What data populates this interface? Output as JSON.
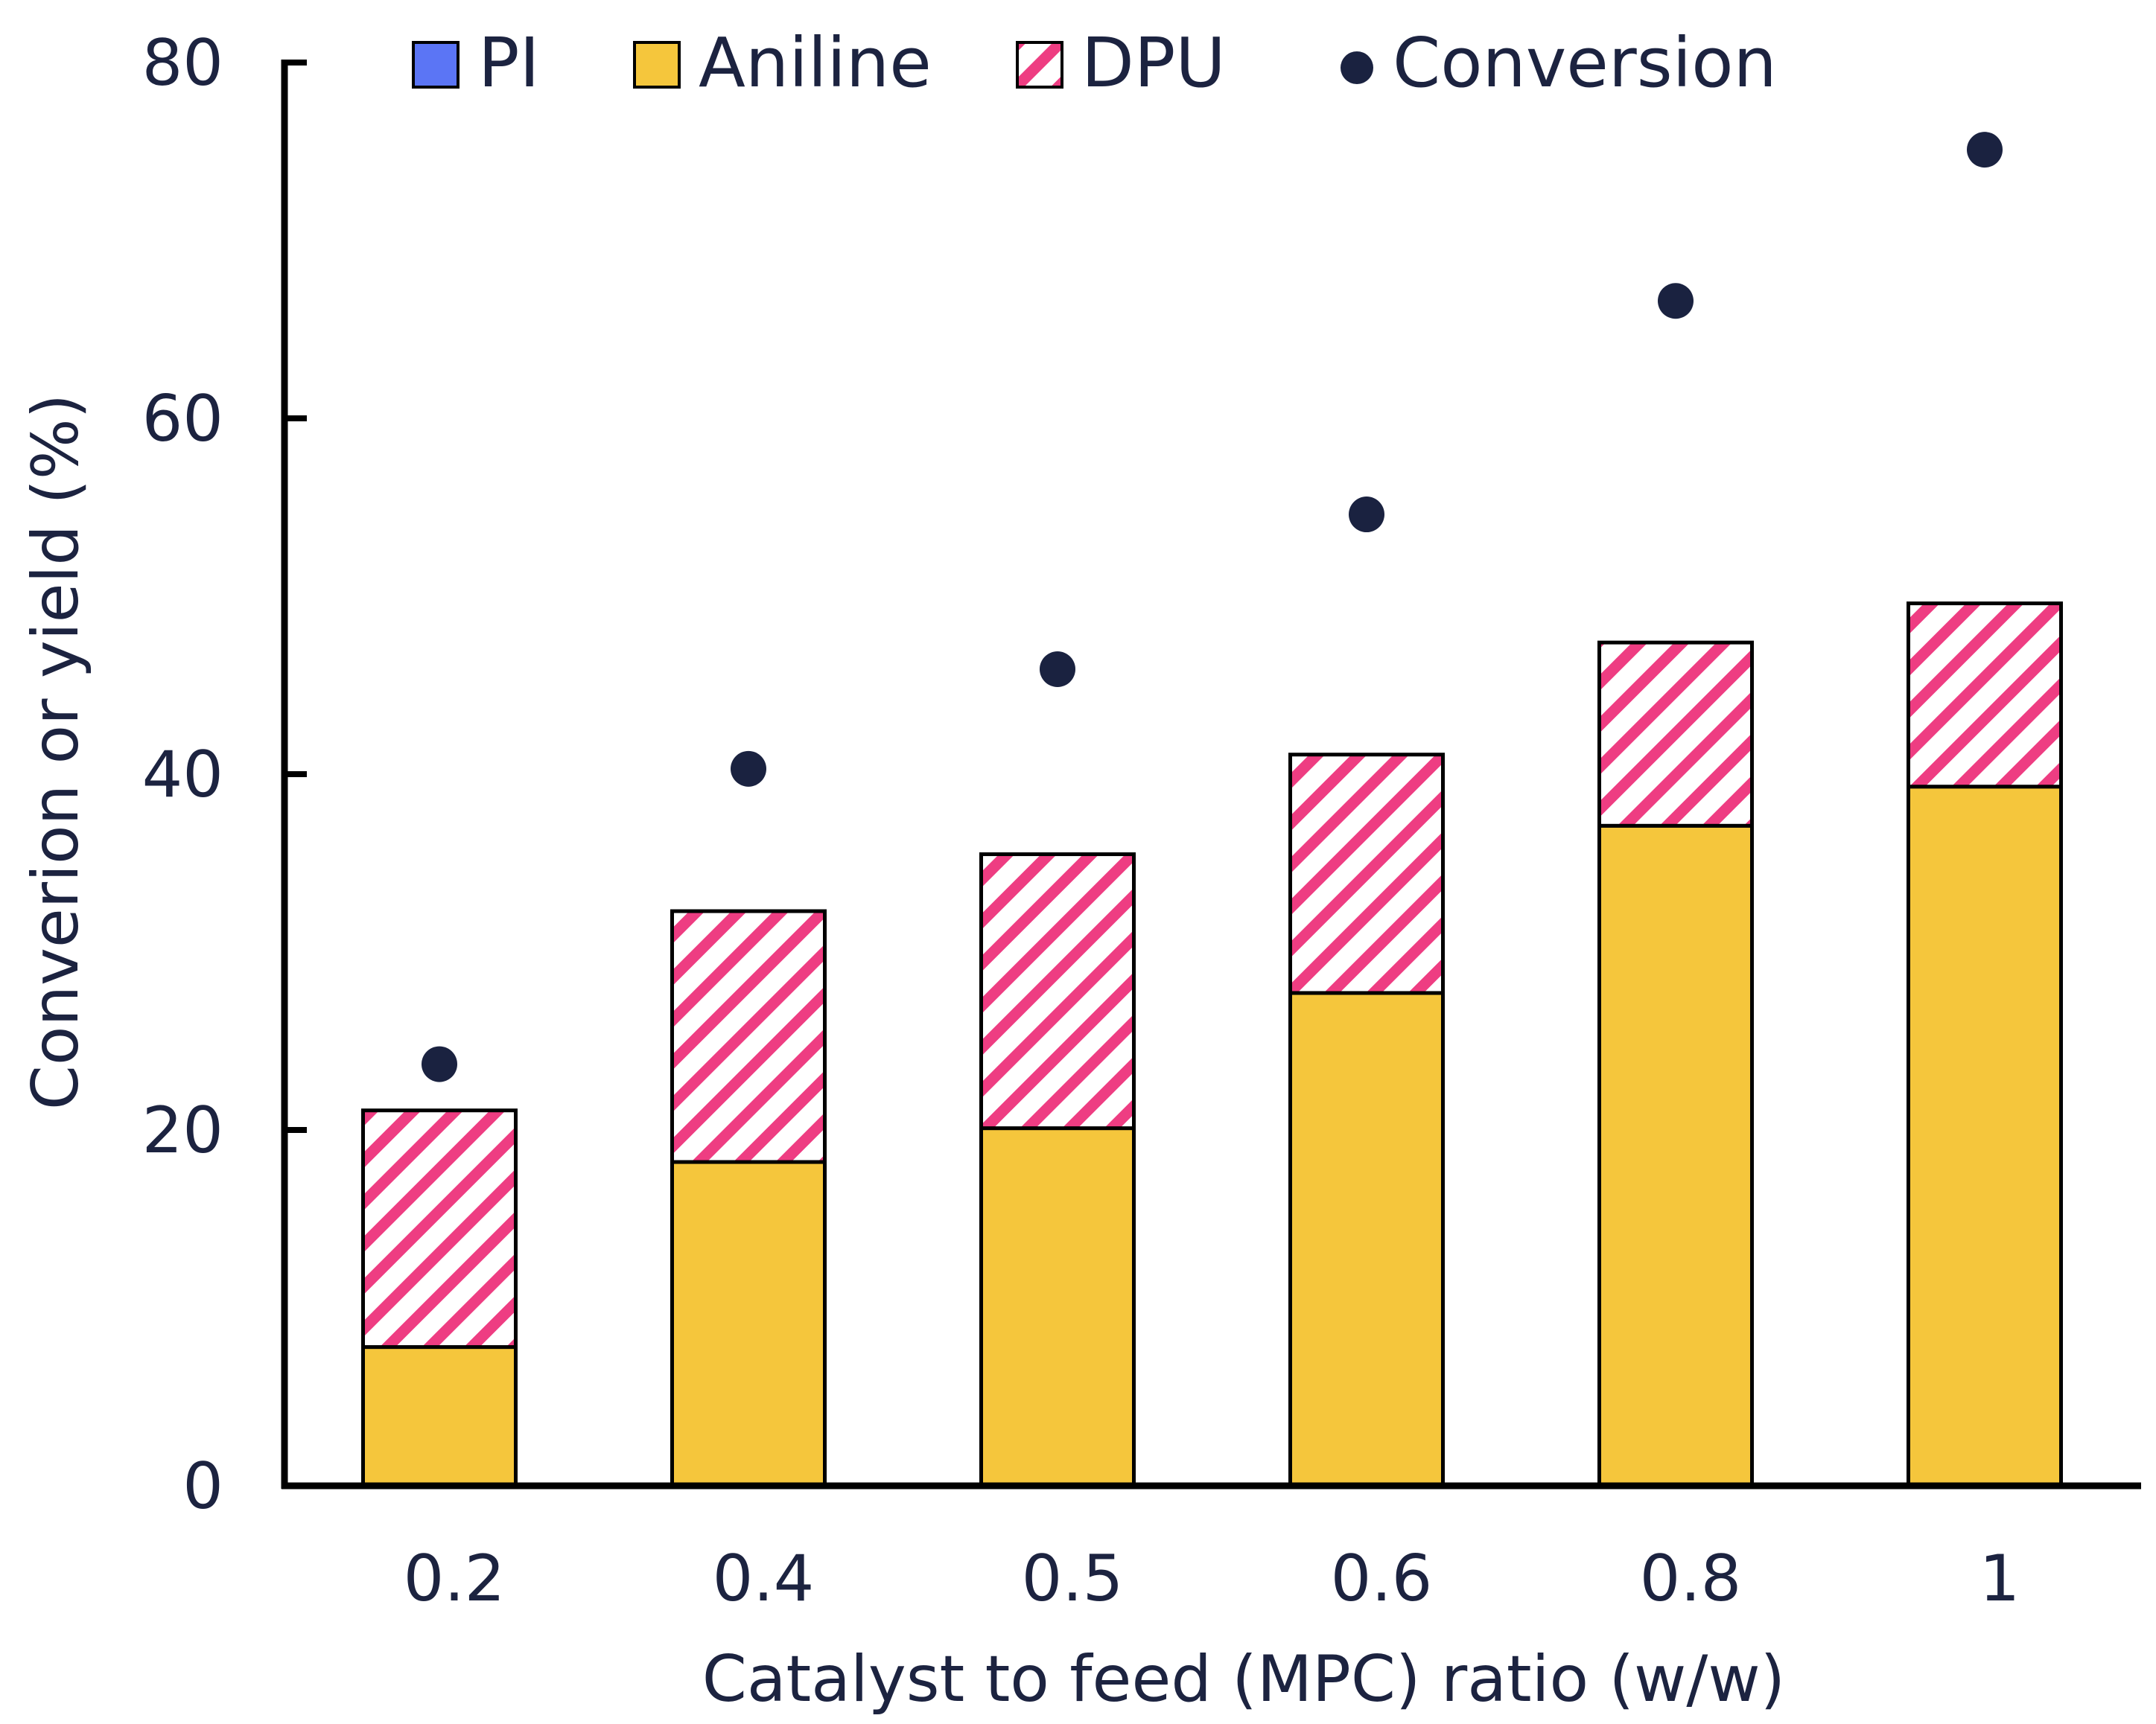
{
  "chart_data": {
    "type": "bar",
    "stacked": true,
    "title": "",
    "xlabel": "Catalyst to feed (MPC) ratio (w/w)",
    "ylabel": "Converion or yield (%)",
    "ylim": [
      0,
      80
    ],
    "yticks": [
      0,
      20,
      40,
      60,
      80
    ],
    "categories": [
      "0.2",
      "0.4",
      "0.5",
      "0.6",
      "0.8",
      "1"
    ],
    "series": [
      {
        "name": "PI",
        "kind": "bar",
        "values": [
          0,
          0,
          0,
          0,
          0,
          0
        ]
      },
      {
        "name": "Aniline",
        "kind": "bar",
        "values": [
          7.8,
          18.2,
          20.1,
          27.7,
          37.1,
          39.3
        ]
      },
      {
        "name": "DPU",
        "kind": "bar",
        "values": [
          13.3,
          14.1,
          15.4,
          13.4,
          10.3,
          10.3
        ]
      },
      {
        "name": "Conversion",
        "kind": "scatter",
        "values": [
          23.7,
          40.3,
          45.9,
          54.6,
          66.6,
          75.1
        ]
      }
    ],
    "legend": {
      "placement": "top",
      "entries": [
        "PI",
        "Aniline",
        "DPU",
        "Conversion"
      ]
    },
    "colors": {
      "PI": "#5b75f5",
      "Aniline": "#f5c63c",
      "DPU": "#ee3d82",
      "Conversion": "#1a2240",
      "axis": "#000000",
      "text": "#1c2340"
    }
  }
}
